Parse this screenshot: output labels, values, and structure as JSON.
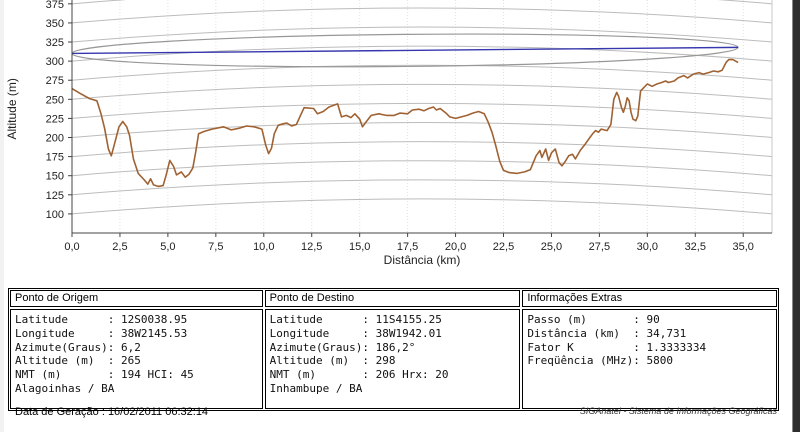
{
  "chart_data": {
    "type": "line",
    "title": "",
    "xlabel": "Distância (km)",
    "ylabel": "Altitude (m)",
    "x_max": 36.5,
    "y_min": 75,
    "y_max": 380,
    "x_ticks": [
      0.0,
      2.5,
      5.0,
      7.5,
      10.0,
      12.5,
      15.0,
      17.5,
      20.0,
      22.5,
      25.0,
      27.5,
      30.0,
      32.5,
      35.0
    ],
    "y_ticks": [
      100,
      125,
      150,
      175,
      200,
      225,
      250,
      275,
      300,
      325,
      350,
      375
    ],
    "grid": {
      "on": true,
      "earth_bulge_m": 19.6,
      "h_color": "#bcbcbc",
      "v_color": "#e2e2e2"
    },
    "axis_color": "#444444",
    "series": [
      {
        "name": "perfil-do-terreno",
        "color": "#9f6233",
        "points": [
          [
            0,
            264
          ],
          [
            0.4,
            258
          ],
          [
            0.9,
            251
          ],
          [
            1.3,
            248
          ],
          [
            1.5,
            232
          ],
          [
            1.7,
            212
          ],
          [
            1.9,
            185
          ],
          [
            2.05,
            176
          ],
          [
            2.2,
            190
          ],
          [
            2.45,
            214
          ],
          [
            2.65,
            221
          ],
          [
            2.85,
            214
          ],
          [
            3,
            203
          ],
          [
            3.2,
            172
          ],
          [
            3.45,
            153
          ],
          [
            3.75,
            145
          ],
          [
            3.95,
            139
          ],
          [
            4.1,
            146
          ],
          [
            4.25,
            138
          ],
          [
            4.5,
            136
          ],
          [
            4.75,
            137
          ],
          [
            4.9,
            150
          ],
          [
            5.1,
            170
          ],
          [
            5.3,
            162
          ],
          [
            5.45,
            151
          ],
          [
            5.7,
            155
          ],
          [
            5.9,
            148
          ],
          [
            6.1,
            152
          ],
          [
            6.3,
            160
          ],
          [
            6.45,
            181
          ],
          [
            6.6,
            205
          ],
          [
            6.9,
            208
          ],
          [
            7.3,
            211
          ],
          [
            7.9,
            214
          ],
          [
            8.3,
            210
          ],
          [
            8.7,
            212
          ],
          [
            9.1,
            215
          ],
          [
            9.5,
            214
          ],
          [
            9.9,
            211
          ],
          [
            10.1,
            190
          ],
          [
            10.25,
            179
          ],
          [
            10.4,
            186
          ],
          [
            10.55,
            205
          ],
          [
            10.75,
            216
          ],
          [
            11,
            218
          ],
          [
            11.2,
            219
          ],
          [
            11.45,
            215
          ],
          [
            11.7,
            217
          ],
          [
            11.9,
            228
          ],
          [
            12.1,
            239
          ],
          [
            12.6,
            238
          ],
          [
            12.8,
            231
          ],
          [
            13.1,
            234
          ],
          [
            13.4,
            240
          ],
          [
            13.85,
            244
          ],
          [
            14.05,
            227
          ],
          [
            14.3,
            229
          ],
          [
            14.55,
            226
          ],
          [
            14.75,
            231
          ],
          [
            15,
            224
          ],
          [
            15.15,
            214
          ],
          [
            15.35,
            221
          ],
          [
            15.6,
            229
          ],
          [
            16,
            231
          ],
          [
            16.4,
            229
          ],
          [
            16.8,
            229
          ],
          [
            17.1,
            232
          ],
          [
            17.5,
            231
          ],
          [
            17.75,
            236
          ],
          [
            18.1,
            237
          ],
          [
            18.35,
            235
          ],
          [
            18.6,
            238
          ],
          [
            18.85,
            240
          ],
          [
            19,
            236
          ],
          [
            19.2,
            238
          ],
          [
            19.5,
            232
          ],
          [
            19.7,
            227
          ],
          [
            20,
            225
          ],
          [
            20.3,
            227
          ],
          [
            20.6,
            229
          ],
          [
            20.9,
            232
          ],
          [
            21.2,
            234
          ],
          [
            21.5,
            231
          ],
          [
            21.7,
            220
          ],
          [
            21.9,
            207
          ],
          [
            22.1,
            189
          ],
          [
            22.3,
            169
          ],
          [
            22.5,
            157
          ],
          [
            22.8,
            154
          ],
          [
            23.2,
            153
          ],
          [
            23.6,
            155
          ],
          [
            23.9,
            158
          ],
          [
            24.2,
            176
          ],
          [
            24.4,
            183
          ],
          [
            24.5,
            174
          ],
          [
            24.7,
            185
          ],
          [
            24.85,
            170
          ],
          [
            25,
            180
          ],
          [
            25.2,
            185
          ],
          [
            25.4,
            167
          ],
          [
            25.55,
            163
          ],
          [
            25.7,
            168
          ],
          [
            25.9,
            176
          ],
          [
            26.1,
            178
          ],
          [
            26.25,
            172
          ],
          [
            26.5,
            183
          ],
          [
            26.75,
            191
          ],
          [
            26.95,
            198
          ],
          [
            27.15,
            205
          ],
          [
            27.3,
            209
          ],
          [
            27.45,
            207
          ],
          [
            27.6,
            211
          ],
          [
            27.9,
            209
          ],
          [
            28.1,
            217
          ],
          [
            28.25,
            250
          ],
          [
            28.4,
            259
          ],
          [
            28.5,
            254
          ],
          [
            28.65,
            239
          ],
          [
            28.75,
            233
          ],
          [
            28.85,
            241
          ],
          [
            28.95,
            252
          ],
          [
            29.05,
            248
          ],
          [
            29.15,
            233
          ],
          [
            29.25,
            224
          ],
          [
            29.4,
            222
          ],
          [
            29.5,
            228
          ],
          [
            29.55,
            239
          ],
          [
            29.65,
            261
          ],
          [
            29.8,
            265
          ],
          [
            30,
            270
          ],
          [
            30.25,
            267
          ],
          [
            30.5,
            270
          ],
          [
            30.75,
            272
          ],
          [
            30.95,
            274
          ],
          [
            31.1,
            272
          ],
          [
            31.4,
            274
          ],
          [
            31.6,
            278
          ],
          [
            31.9,
            281
          ],
          [
            32.1,
            278
          ],
          [
            32.4,
            283
          ],
          [
            32.7,
            285
          ],
          [
            32.9,
            283
          ],
          [
            33.2,
            285
          ],
          [
            33.45,
            287
          ],
          [
            33.7,
            286
          ],
          [
            33.9,
            288
          ],
          [
            34.1,
            298
          ],
          [
            34.25,
            302
          ],
          [
            34.45,
            302
          ],
          [
            34.6,
            300
          ],
          [
            34.73,
            298
          ]
        ]
      }
    ],
    "los": {
      "name": "linha-de-visada",
      "color": "#3636ae",
      "points": [
        [
          0,
          310
        ],
        [
          34.731,
          318
        ]
      ]
    },
    "fresnel": {
      "name": "zona-de-fresnel",
      "color": "#979797",
      "center_km": 17.3655,
      "center_m": 314,
      "rx_km": 17.3655,
      "ry_m": 21
    }
  },
  "tables": {
    "panels": [
      {
        "title": "Ponto de Origem",
        "label_pad": 14,
        "rows": [
          [
            "Latitude",
            "12S0038.95"
          ],
          [
            "Longitude",
            "38W2145.53"
          ],
          [
            "Azimute(Graus)",
            "6,2"
          ],
          [
            "Altitude (m)",
            "265"
          ],
          [
            "NMT (m)",
            "194 HCI: 45"
          ]
        ],
        "city": "Alagoinhas / BA"
      },
      {
        "title": "Ponto de Destino",
        "label_pad": 14,
        "rows": [
          [
            "Latitude",
            "11S4155.25"
          ],
          [
            "Longitude",
            "38W1942.01"
          ],
          [
            "Azimute(Graus)",
            "186,2°"
          ],
          [
            "Altitude (m)",
            "298"
          ],
          [
            "NMT (m)",
            "206 Hrx: 20"
          ]
        ],
        "city": "Inhambupe / BA"
      },
      {
        "title": "Informações Extras",
        "label_pad": 16,
        "rows": [
          [
            "Passo (m)",
            "90"
          ],
          [
            "Distância (km)",
            "34,731"
          ],
          [
            "Fator K",
            "1.3333334"
          ],
          [
            "Freqüência (MHz)",
            "5800"
          ]
        ],
        "city": ""
      }
    ]
  },
  "footer": {
    "generated": "Data de Geração : 16/02/2011 06:32:14",
    "brand": "SIGAnatel - Sistema de Informações Geográficas"
  }
}
